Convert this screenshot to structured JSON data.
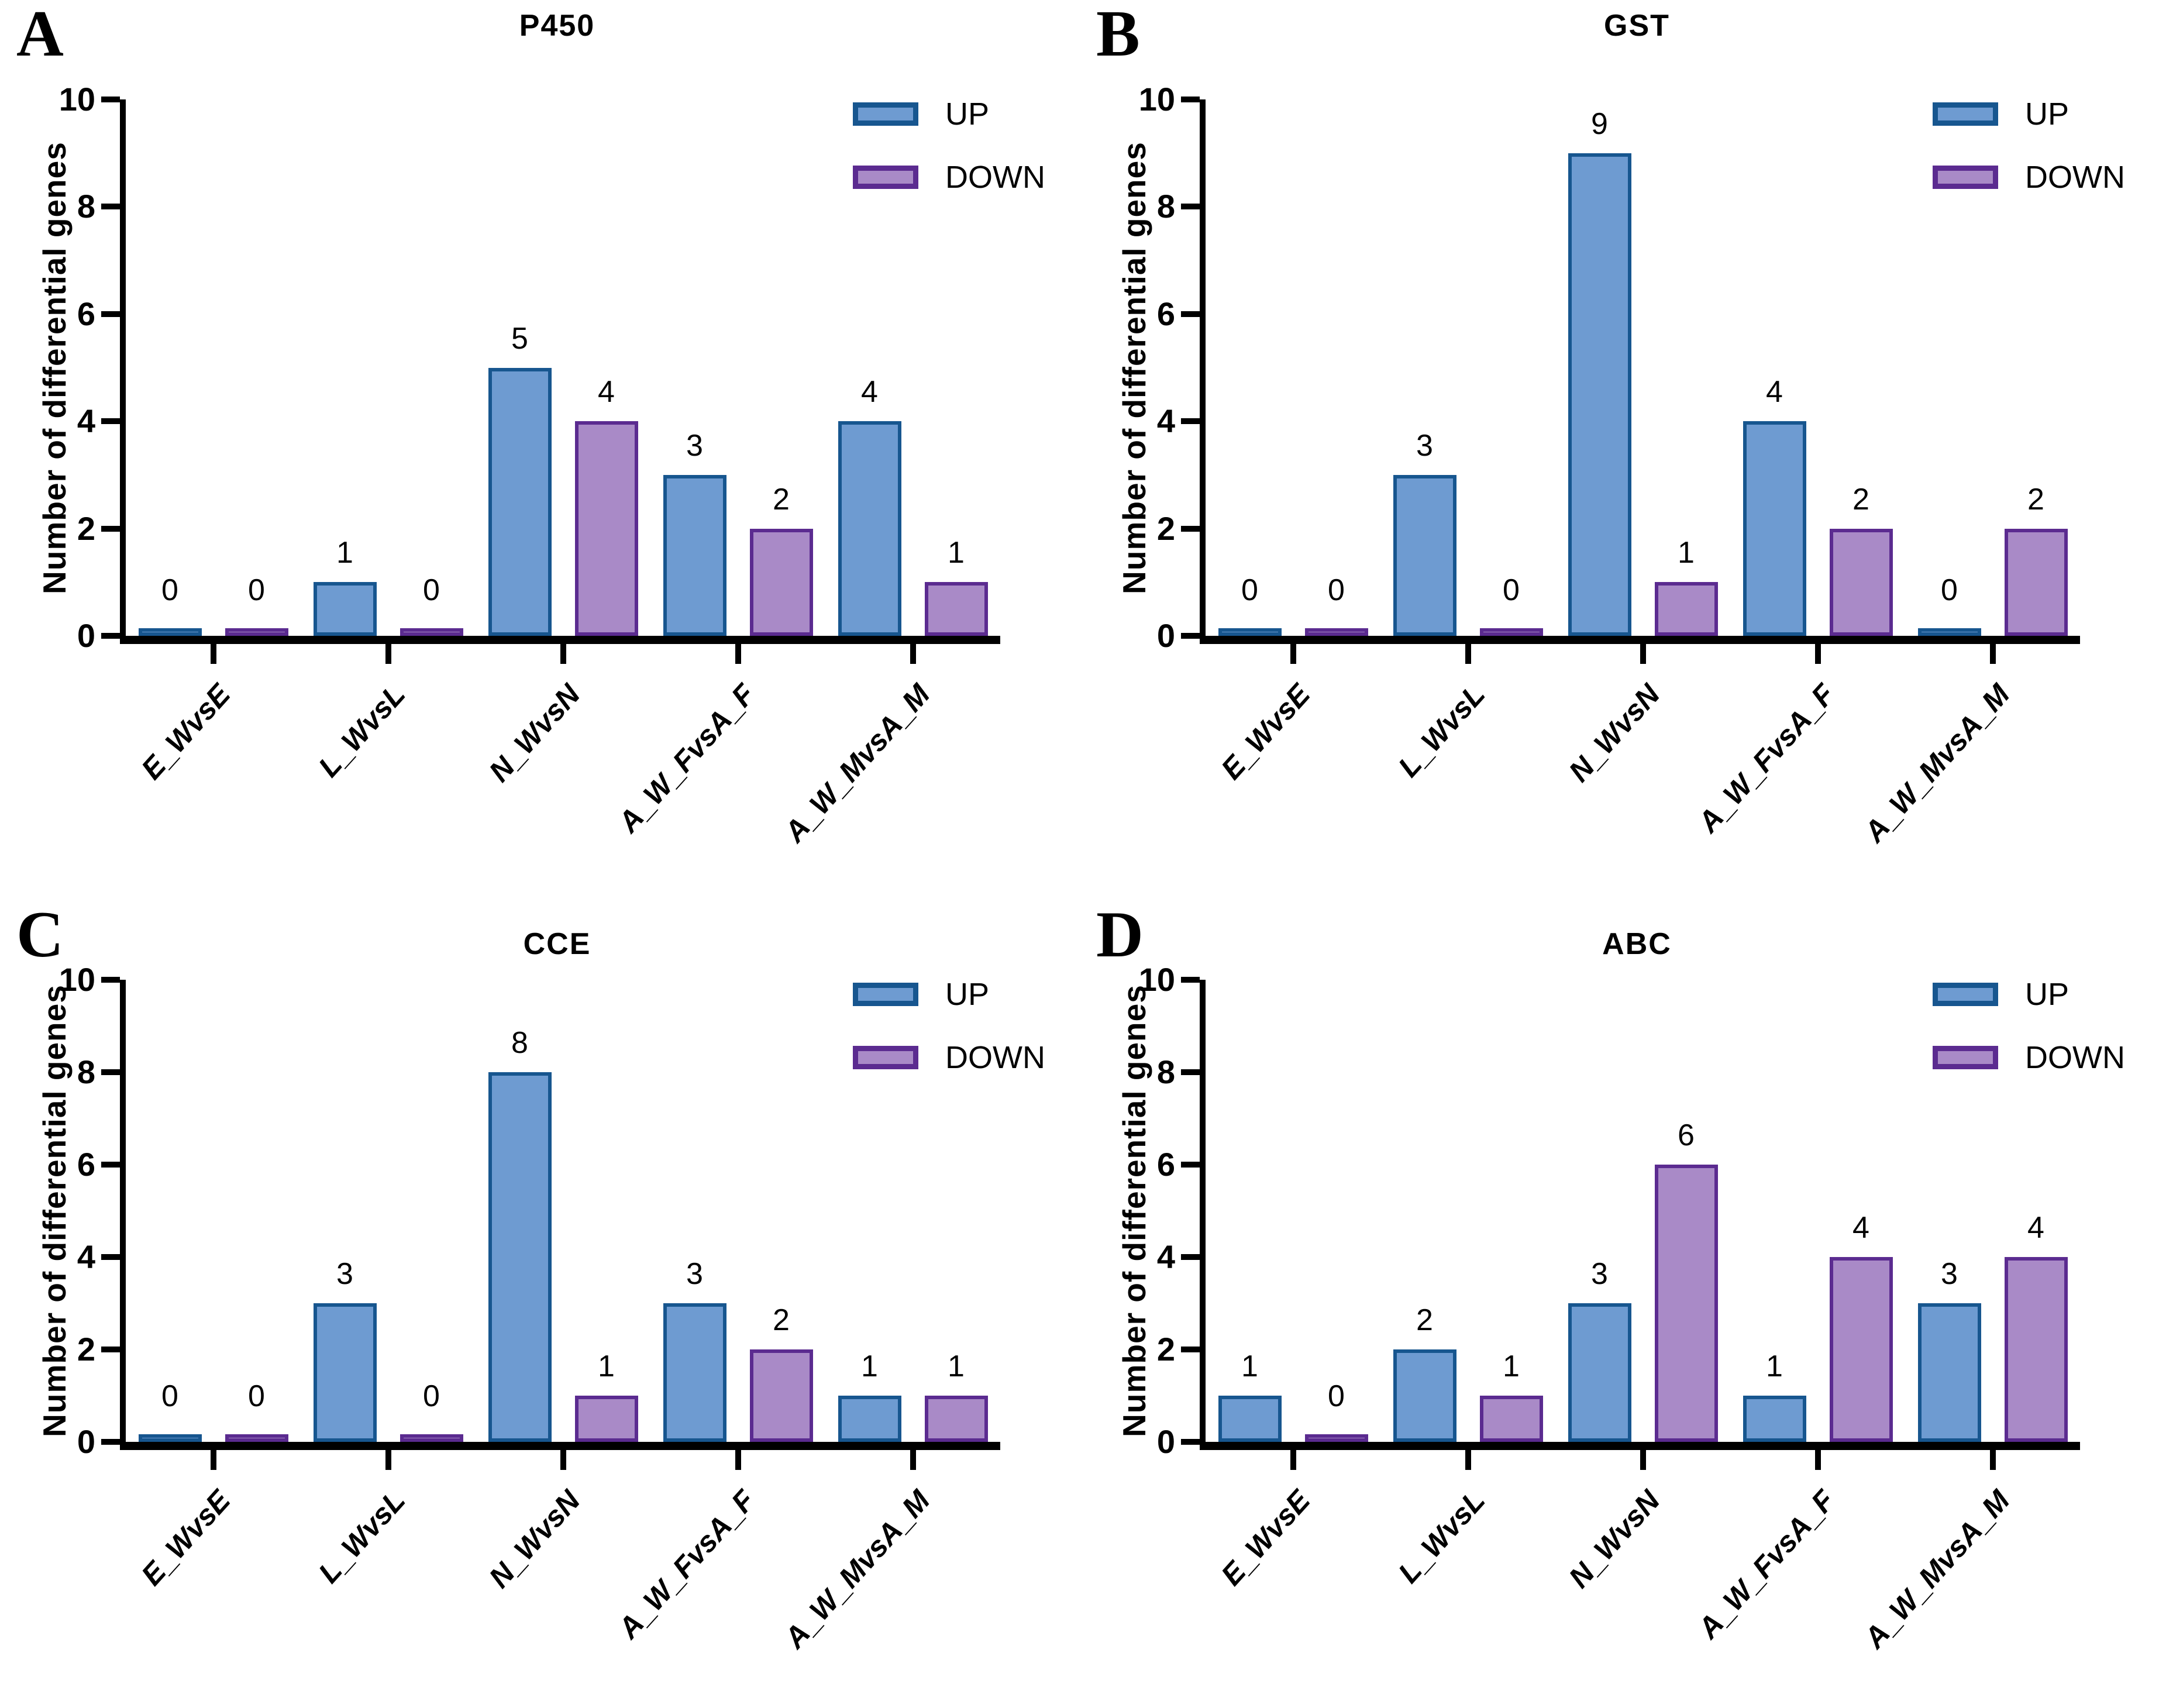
{
  "figure": {
    "background": "#ffffff",
    "colors": {
      "up_fill": "#6E9BD1",
      "up_edge": "#17568F",
      "down_fill": "#A98AC7",
      "down_edge": "#5B2B90",
      "axis": "#000000",
      "text": "#000000"
    }
  },
  "legend": {
    "items": [
      {
        "label": "UP",
        "series": "up"
      },
      {
        "label": "DOWN",
        "series": "down"
      }
    ]
  },
  "chart_data": [
    {
      "type": "bar",
      "panel_label": "A",
      "title": "P450",
      "ylabel": "Number of differential genes",
      "xlabel": "",
      "ylim": [
        0,
        10
      ],
      "yticks": [
        0,
        2,
        4,
        6,
        8,
        10
      ],
      "grid": false,
      "legend_position": "top-right",
      "categories": [
        "E_WvsE",
        "L_WvsL",
        "N_WvsN",
        "A_W_FvsA_F",
        "A_W_MvsA_M"
      ],
      "series": [
        {
          "name": "UP",
          "values": [
            0,
            1,
            5,
            3,
            4
          ]
        },
        {
          "name": "DOWN",
          "values": [
            0,
            0,
            4,
            2,
            1
          ]
        }
      ]
    },
    {
      "type": "bar",
      "panel_label": "B",
      "title": "GST",
      "ylabel": "Number of differential genes",
      "xlabel": "",
      "ylim": [
        0,
        10
      ],
      "yticks": [
        0,
        2,
        4,
        6,
        8,
        10
      ],
      "grid": false,
      "legend_position": "top-right",
      "categories": [
        "E_WvsE",
        "L_WvsL",
        "N_WvsN",
        "A_W_FvsA_F",
        "A_W_MvsA_M"
      ],
      "series": [
        {
          "name": "UP",
          "values": [
            0,
            3,
            9,
            4,
            0
          ]
        },
        {
          "name": "DOWN",
          "values": [
            0,
            0,
            1,
            2,
            2
          ]
        }
      ]
    },
    {
      "type": "bar",
      "panel_label": "C",
      "title": "CCE",
      "ylabel": "Number of differential genes",
      "xlabel": "",
      "ylim": [
        0,
        10
      ],
      "yticks": [
        0,
        2,
        4,
        6,
        8,
        10
      ],
      "grid": false,
      "legend_position": "top-right",
      "categories": [
        "E_WvsE",
        "L_WvsL",
        "N_WvsN",
        "A_W_FvsA_F",
        "A_W_MvsA_M"
      ],
      "series": [
        {
          "name": "UP",
          "values": [
            0,
            3,
            8,
            3,
            1
          ]
        },
        {
          "name": "DOWN",
          "values": [
            0,
            0,
            1,
            2,
            1
          ]
        }
      ]
    },
    {
      "type": "bar",
      "panel_label": "D",
      "title": "ABC",
      "ylabel": "Number of differential genes",
      "xlabel": "",
      "ylim": [
        0,
        10
      ],
      "yticks": [
        0,
        2,
        4,
        6,
        8,
        10
      ],
      "grid": false,
      "legend_position": "top-right",
      "categories": [
        "E_WvsE",
        "L_WvsL",
        "N_WvsN",
        "A_W_FvsA_F",
        "A_W_MvsA_M"
      ],
      "series": [
        {
          "name": "UP",
          "values": [
            1,
            2,
            3,
            1,
            3
          ]
        },
        {
          "name": "DOWN",
          "values": [
            0,
            1,
            6,
            4,
            4
          ]
        }
      ]
    }
  ]
}
